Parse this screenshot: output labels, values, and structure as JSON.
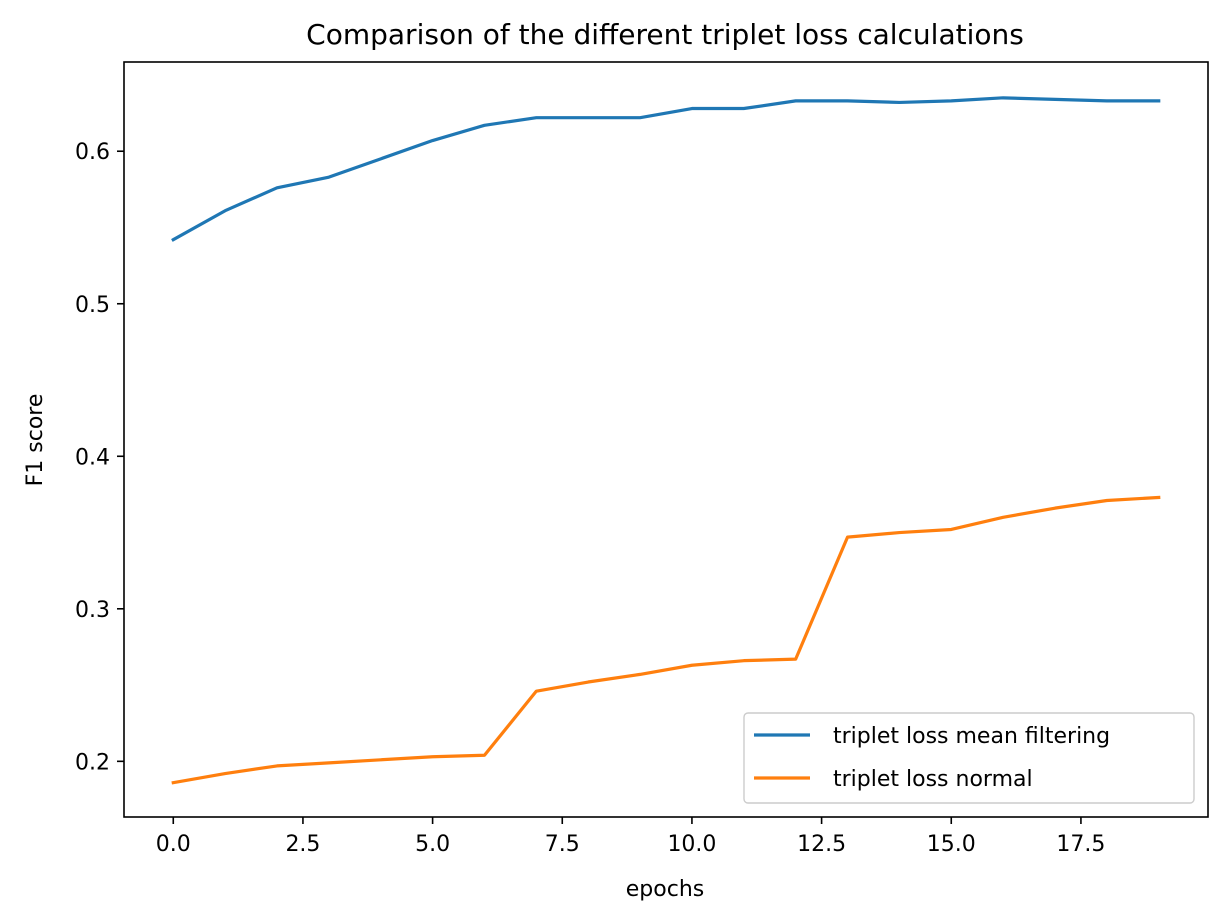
{
  "chart_data": {
    "type": "line",
    "title": "Comparison of the different triplet loss calculations",
    "xlabel": "epochs",
    "ylabel": "F1 score",
    "xlim": [
      -0.95,
      19.95
    ],
    "ylim": [
      0.1635,
      0.6585
    ],
    "xticks": [
      0.0,
      2.5,
      5.0,
      7.5,
      10.0,
      12.5,
      15.0,
      17.5
    ],
    "xtick_labels": [
      "0.0",
      "2.5",
      "5.0",
      "7.5",
      "10.0",
      "12.5",
      "15.0",
      "17.5"
    ],
    "yticks": [
      0.2,
      0.3,
      0.4,
      0.5,
      0.6
    ],
    "ytick_labels": [
      "0.2",
      "0.3",
      "0.4",
      "0.5",
      "0.6"
    ],
    "grid": false,
    "legend_position": "lower-right",
    "x": [
      0,
      1,
      2,
      3,
      4,
      5,
      6,
      7,
      8,
      9,
      10,
      11,
      12,
      13,
      14,
      15,
      16,
      17,
      18,
      19
    ],
    "series": [
      {
        "name": "triplet loss mean filtering",
        "color": "#1f77b4",
        "values": [
          0.542,
          0.561,
          0.576,
          0.583,
          0.595,
          0.607,
          0.617,
          0.622,
          0.622,
          0.622,
          0.628,
          0.628,
          0.633,
          0.633,
          0.632,
          0.633,
          0.635,
          0.634,
          0.633,
          0.633
        ]
      },
      {
        "name": "triplet loss normal",
        "color": "#ff7f0e",
        "values": [
          0.186,
          0.192,
          0.197,
          0.199,
          0.201,
          0.203,
          0.204,
          0.246,
          0.252,
          0.257,
          0.263,
          0.266,
          0.267,
          0.347,
          0.35,
          0.352,
          0.36,
          0.366,
          0.371,
          0.373
        ]
      }
    ]
  }
}
